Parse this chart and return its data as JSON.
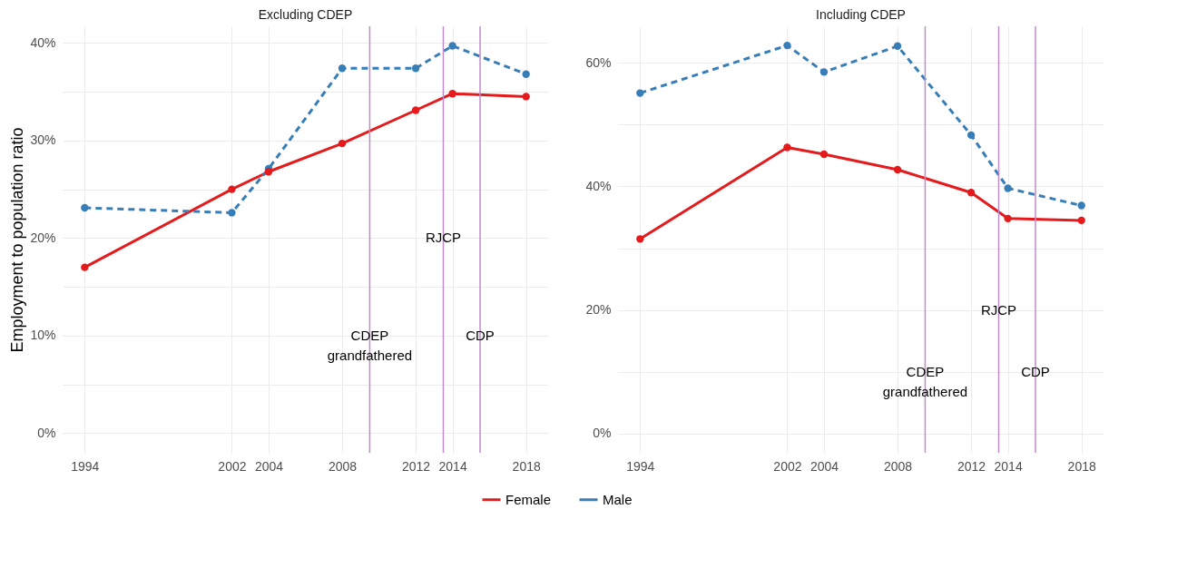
{
  "chart_data": [
    {
      "type": "line",
      "title": "Excluding CDEP",
      "ylabel": "Employment to population ratio",
      "x": [
        1994,
        2002,
        2004,
        2008,
        2012,
        2014,
        2018
      ],
      "series": [
        {
          "name": "Female",
          "color": "#e41a1c",
          "line_style": "solid",
          "values": [
            17.0,
            25.0,
            26.8,
            29.7,
            33.1,
            34.8,
            34.5
          ]
        },
        {
          "name": "Male",
          "color": "#377eb8",
          "line_style": "dashed",
          "values": [
            23.1,
            22.6,
            27.1,
            37.4,
            37.4,
            39.7,
            36.8
          ]
        }
      ],
      "xlim": [
        1992.8,
        2019.2
      ],
      "xticks": [
        1994,
        2002,
        2004,
        2008,
        2012,
        2014,
        2018
      ],
      "ylim": [
        -2,
        41.7
      ],
      "yticks": [
        {
          "value": 0,
          "label": "0%"
        },
        {
          "value": 5,
          "label": null
        },
        {
          "value": 10,
          "label": "10%"
        },
        {
          "value": 15,
          "label": null
        },
        {
          "value": 20,
          "label": "20%"
        },
        {
          "value": 25,
          "label": null
        },
        {
          "value": 30,
          "label": "30%"
        },
        {
          "value": 35,
          "label": null
        },
        {
          "value": 40,
          "label": "40%"
        }
      ],
      "ref_lines": [
        {
          "axis": "x",
          "value": 2009.5,
          "color": "#c08bcc"
        },
        {
          "axis": "x",
          "value": 2013.5,
          "color": "#c08bcc"
        },
        {
          "axis": "x",
          "value": 2015.5,
          "color": "#c08bcc"
        }
      ],
      "annotations": [
        {
          "text": "CDEP\ngrandfathered",
          "x": 2009.5,
          "y": 10
        },
        {
          "text": "RJCP",
          "x": 2013.5,
          "y": 20
        },
        {
          "text": "CDP",
          "x": 2015.5,
          "y": 10
        }
      ],
      "grid": true,
      "legend": "bottom",
      "marker": "circle"
    },
    {
      "type": "line",
      "title": "Including CDEP",
      "x": [
        1994,
        2002,
        2004,
        2008,
        2012,
        2014,
        2018
      ],
      "series": [
        {
          "name": "Female",
          "color": "#e41a1c",
          "line_style": "solid",
          "values": [
            31.5,
            46.3,
            45.2,
            42.7,
            39.0,
            34.8,
            34.5
          ]
        },
        {
          "name": "Male",
          "color": "#377eb8",
          "line_style": "dashed",
          "values": [
            55.1,
            62.8,
            58.5,
            62.7,
            48.3,
            39.7,
            36.9
          ]
        }
      ],
      "xlim": [
        1992.8,
        2019.2
      ],
      "xticks": [
        1994,
        2002,
        2004,
        2008,
        2012,
        2014,
        2018
      ],
      "ylim": [
        -3.1,
        65.9
      ],
      "yticks": [
        {
          "value": 0,
          "label": "0%"
        },
        {
          "value": 10,
          "label": null
        },
        {
          "value": 20,
          "label": "20%"
        },
        {
          "value": 30,
          "label": null
        },
        {
          "value": 40,
          "label": "40%"
        },
        {
          "value": 50,
          "label": null
        },
        {
          "value": 60,
          "label": "60%"
        }
      ],
      "ref_lines": [
        {
          "axis": "x",
          "value": 2009.5,
          "color": "#c08bcc"
        },
        {
          "axis": "x",
          "value": 2013.5,
          "color": "#c08bcc"
        },
        {
          "axis": "x",
          "value": 2015.5,
          "color": "#c08bcc"
        }
      ],
      "annotations": [
        {
          "text": "CDEP\ngrandfathered",
          "x": 2009.5,
          "y": 10
        },
        {
          "text": "RJCP",
          "x": 2013.5,
          "y": 20
        },
        {
          "text": "CDP",
          "x": 2015.5,
          "y": 10
        }
      ],
      "grid": true,
      "legend": "bottom",
      "marker": "circle"
    }
  ]
}
